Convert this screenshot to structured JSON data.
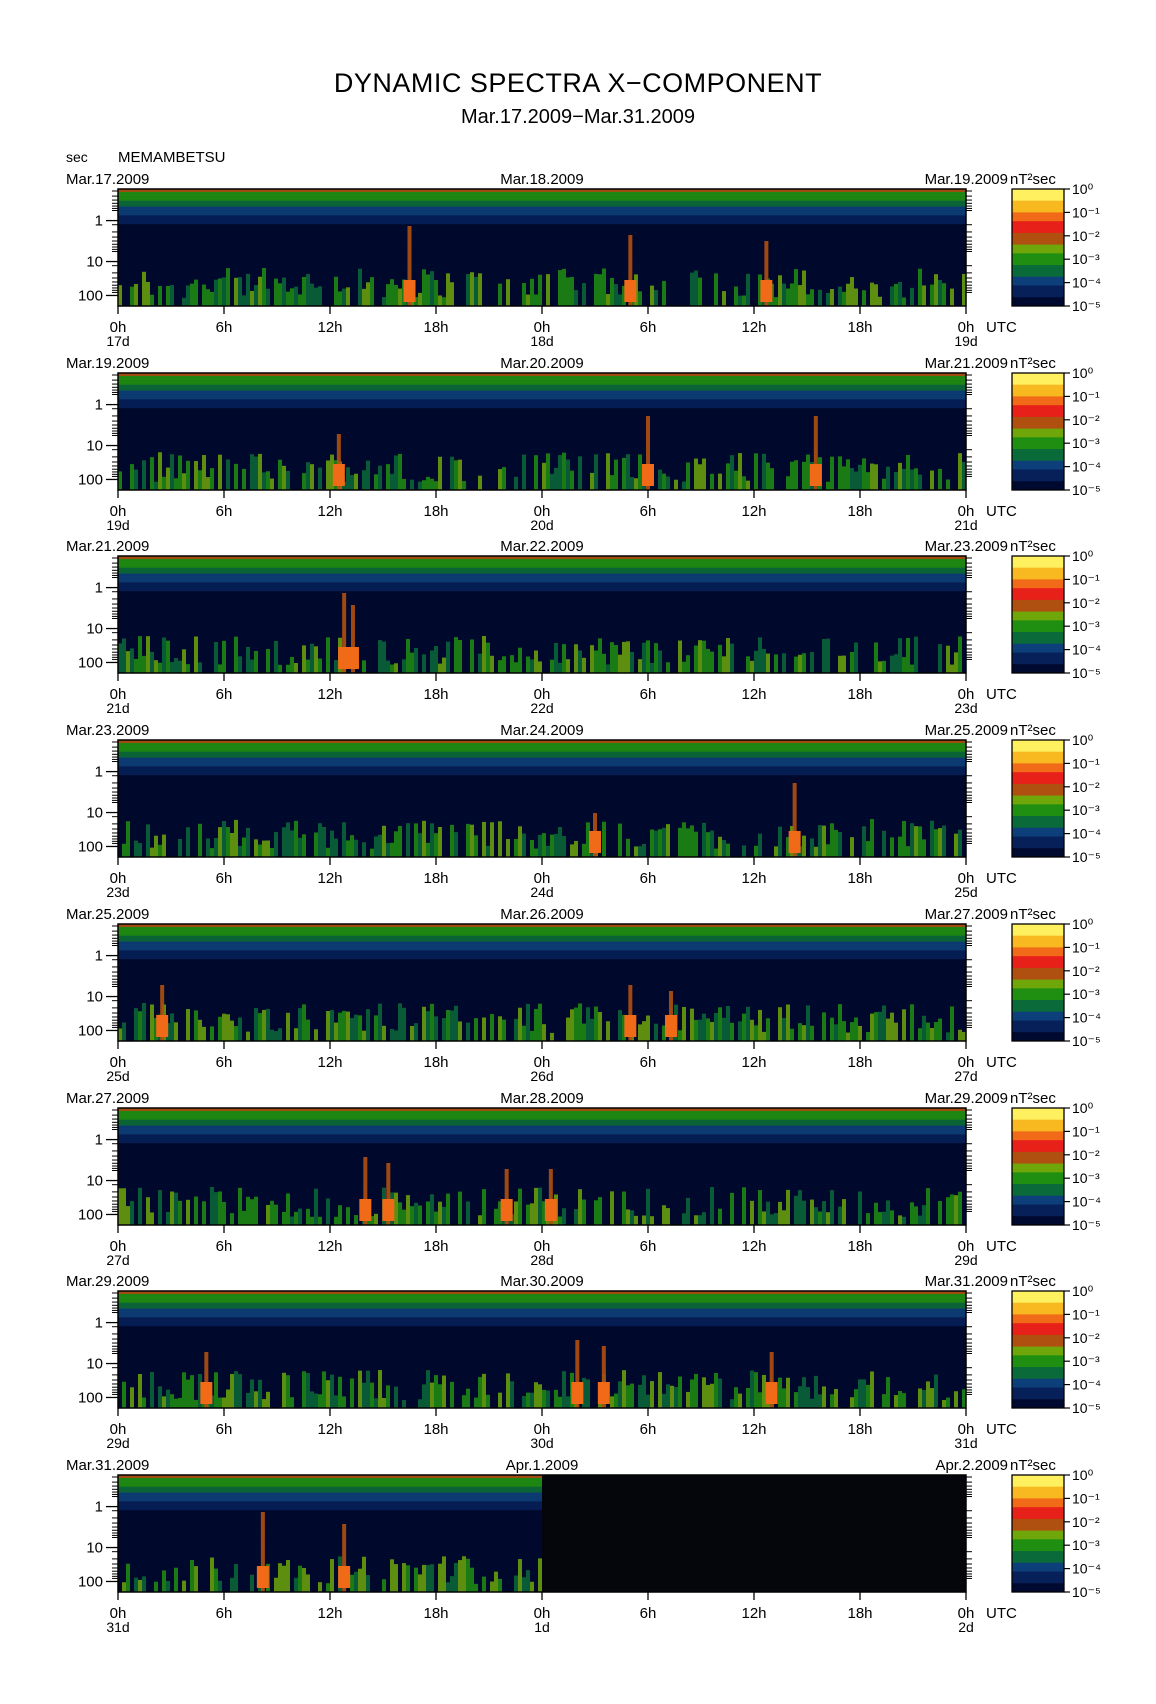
{
  "title": "DYNAMIC SPECTRA X−COMPONENT",
  "subtitle": "Mar.17.2009−Mar.31.2009",
  "station": "MEMAMBETSU",
  "y_unit": "sec",
  "colorbar_unit": "nT²sec",
  "utc_label": "UTC",
  "chart_data": [
    {
      "type": "heatmap",
      "date_left": "Mar.17.2009",
      "date_center": "Mar.18.2009",
      "date_right": "Mar.19.2009",
      "x_ticks": [
        "0h",
        "6h",
        "12h",
        "18h",
        "0h",
        "6h",
        "12h",
        "18h",
        "0h"
      ],
      "day_labels": [
        "17d",
        "18d",
        "19d"
      ],
      "y_ticks": [
        "1",
        "10",
        "100"
      ],
      "colorbar_ticks": [
        "10⁰",
        "10⁻¹",
        "10⁻²",
        "10⁻³",
        "10⁻⁴",
        "10⁻⁵"
      ],
      "events": [
        [
          16.5,
          1.0
        ],
        [
          29,
          0.85
        ],
        [
          36.7,
          0.75
        ]
      ],
      "data_end_hours": 48
    },
    {
      "type": "heatmap",
      "date_left": "Mar.19.2009",
      "date_center": "Mar.20.2009",
      "date_right": "Mar.21.2009",
      "x_ticks": [
        "0h",
        "6h",
        "12h",
        "18h",
        "0h",
        "6h",
        "12h",
        "18h",
        "0h"
      ],
      "day_labels": [
        "19d",
        "20d",
        "21d"
      ],
      "y_ticks": [
        "1",
        "10",
        "100"
      ],
      "colorbar_ticks": [
        "10⁰",
        "10⁻¹",
        "10⁻²",
        "10⁻³",
        "10⁻⁴",
        "10⁻⁵"
      ],
      "events": [
        [
          12.5,
          0.6
        ],
        [
          30,
          0.9
        ],
        [
          39.5,
          0.9
        ]
      ],
      "data_end_hours": 48
    },
    {
      "type": "heatmap",
      "date_left": "Mar.21.2009",
      "date_center": "Mar.22.2009",
      "date_right": "Mar.23.2009",
      "x_ticks": [
        "0h",
        "6h",
        "12h",
        "18h",
        "0h",
        "6h",
        "12h",
        "18h",
        "0h"
      ],
      "day_labels": [
        "21d",
        "22d",
        "23d"
      ],
      "y_ticks": [
        "1",
        "10",
        "100"
      ],
      "colorbar_ticks": [
        "10⁰",
        "10⁻¹",
        "10⁻²",
        "10⁻³",
        "10⁻⁴",
        "10⁻⁵"
      ],
      "events": [
        [
          12.8,
          1.0
        ],
        [
          13.3,
          0.8
        ]
      ],
      "data_end_hours": 48
    },
    {
      "type": "heatmap",
      "date_left": "Mar.23.2009",
      "date_center": "Mar.24.2009",
      "date_right": "Mar.25.2009",
      "x_ticks": [
        "0h",
        "6h",
        "12h",
        "18h",
        "0h",
        "6h",
        "12h",
        "18h",
        "0h"
      ],
      "day_labels": [
        "23d",
        "24d",
        "25d"
      ],
      "y_ticks": [
        "1",
        "10",
        "100"
      ],
      "colorbar_ticks": [
        "10⁰",
        "10⁻¹",
        "10⁻²",
        "10⁻³",
        "10⁻⁴",
        "10⁻⁵"
      ],
      "events": [
        [
          38.3,
          0.9
        ],
        [
          27,
          0.4
        ]
      ],
      "data_end_hours": 48
    },
    {
      "type": "heatmap",
      "date_left": "Mar.25.2009",
      "date_center": "Mar.26.2009",
      "date_right": "Mar.27.2009",
      "x_ticks": [
        "0h",
        "6h",
        "12h",
        "18h",
        "0h",
        "6h",
        "12h",
        "18h",
        "0h"
      ],
      "day_labels": [
        "25d",
        "26d",
        "27d"
      ],
      "y_ticks": [
        "1",
        "10",
        "100"
      ],
      "colorbar_ticks": [
        "10⁰",
        "10⁻¹",
        "10⁻²",
        "10⁻³",
        "10⁻⁴",
        "10⁻⁵"
      ],
      "events": [
        [
          2.5,
          0.6
        ],
        [
          29,
          0.6
        ],
        [
          31.3,
          0.5
        ]
      ],
      "data_end_hours": 48
    },
    {
      "type": "heatmap",
      "date_left": "Mar.27.2009",
      "date_center": "Mar.28.2009",
      "date_right": "Mar.29.2009",
      "x_ticks": [
        "0h",
        "6h",
        "12h",
        "18h",
        "0h",
        "6h",
        "12h",
        "18h",
        "0h"
      ],
      "day_labels": [
        "27d",
        "28d",
        "29d"
      ],
      "y_ticks": [
        "1",
        "10",
        "100"
      ],
      "colorbar_ticks": [
        "10⁰",
        "10⁻¹",
        "10⁻²",
        "10⁻³",
        "10⁻⁴",
        "10⁻⁵"
      ],
      "events": [
        [
          14,
          0.8
        ],
        [
          15.3,
          0.7
        ],
        [
          22,
          0.6
        ],
        [
          24.5,
          0.6
        ]
      ],
      "data_end_hours": 48
    },
    {
      "type": "heatmap",
      "date_left": "Mar.29.2009",
      "date_center": "Mar.30.2009",
      "date_right": "Mar.31.2009",
      "x_ticks": [
        "0h",
        "6h",
        "12h",
        "18h",
        "0h",
        "6h",
        "12h",
        "18h",
        "0h"
      ],
      "day_labels": [
        "29d",
        "30d",
        "31d"
      ],
      "y_ticks": [
        "1",
        "10",
        "100"
      ],
      "colorbar_ticks": [
        "10⁰",
        "10⁻¹",
        "10⁻²",
        "10⁻³",
        "10⁻⁴",
        "10⁻⁵"
      ],
      "events": [
        [
          5,
          0.6
        ],
        [
          26,
          0.8
        ],
        [
          27.5,
          0.7
        ],
        [
          37,
          0.6
        ]
      ],
      "data_end_hours": 48
    },
    {
      "type": "heatmap",
      "date_left": "Mar.31.2009",
      "date_center": "Apr.1.2009",
      "date_right": "Apr.2.2009",
      "x_ticks": [
        "0h",
        "6h",
        "12h",
        "18h",
        "0h",
        "6h",
        "12h",
        "18h",
        "0h"
      ],
      "day_labels": [
        "31d",
        "1d",
        "2d"
      ],
      "y_ticks": [
        "1",
        "10",
        "100"
      ],
      "colorbar_ticks": [
        "10⁰",
        "10⁻¹",
        "10⁻²",
        "10⁻³",
        "10⁻⁴",
        "10⁻⁵"
      ],
      "events": [
        [
          8.2,
          1.0
        ],
        [
          12.8,
          0.8
        ]
      ],
      "data_end_hours": 24
    }
  ]
}
